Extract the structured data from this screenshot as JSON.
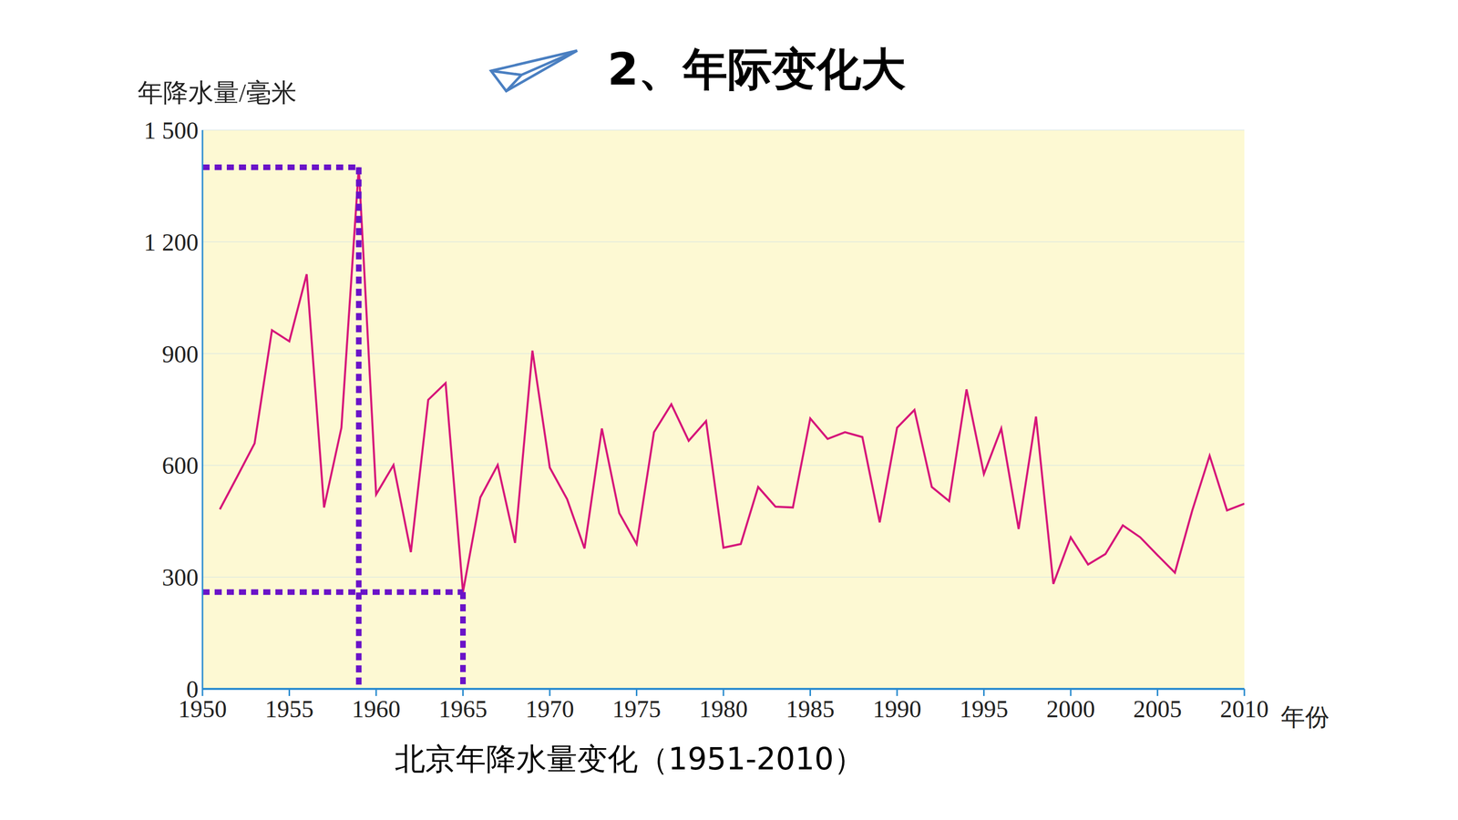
{
  "chart_data": {
    "type": "line",
    "title": "2、年际变化大",
    "caption": "北京年降水量变化（1951-2010）",
    "ylabel": "年降水量/毫米",
    "xlabel": "年份",
    "x": [
      1951,
      1952,
      1953,
      1954,
      1955,
      1956,
      1957,
      1958,
      1959,
      1960,
      1961,
      1962,
      1963,
      1964,
      1965,
      1966,
      1967,
      1968,
      1969,
      1970,
      1971,
      1972,
      1973,
      1974,
      1975,
      1976,
      1977,
      1978,
      1979,
      1980,
      1981,
      1982,
      1983,
      1984,
      1985,
      1986,
      1987,
      1988,
      1989,
      1990,
      1991,
      1992,
      1993,
      1994,
      1995,
      1996,
      1997,
      1998,
      1999,
      2000,
      2001,
      2002,
      2003,
      2004,
      2005,
      2006,
      2007,
      2008,
      2009,
      2010
    ],
    "values": [
      482,
      570,
      659,
      963,
      933,
      1113,
      487,
      701,
      1400,
      522,
      601,
      367,
      776,
      821,
      260,
      514,
      601,
      392,
      908,
      594,
      509,
      377,
      699,
      472,
      389,
      689,
      764,
      666,
      719,
      379,
      389,
      542,
      489,
      487,
      726,
      671,
      689,
      676,
      447,
      701,
      749,
      542,
      504,
      804,
      577,
      699,
      429,
      731,
      282,
      407,
      334,
      362,
      439,
      407,
      359,
      312,
      479,
      626,
      479,
      497
    ],
    "color": "#d6157a",
    "xlim": [
      1950,
      2010
    ],
    "xticks": [
      1950,
      1955,
      1960,
      1965,
      1970,
      1975,
      1980,
      1985,
      1990,
      1995,
      2000,
      2005,
      2010
    ],
    "ylim": [
      0,
      1500
    ],
    "yticks": [
      0,
      300,
      600,
      900,
      {
        "value": 1200,
        "label": "1 200"
      },
      {
        "value": 1500,
        "label": "1 500"
      }
    ],
    "grid": true
  }
}
